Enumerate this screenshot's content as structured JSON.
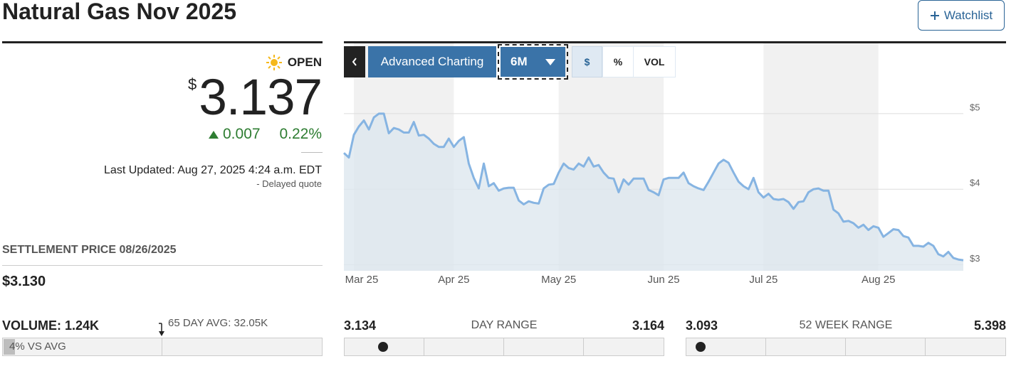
{
  "header": {
    "title": "Natural Gas Nov 2025",
    "watchlist": "Watchlist"
  },
  "quote": {
    "status": "OPEN",
    "currency": "$",
    "price": 3.137,
    "change": 0.007,
    "change_percent": "0.22%",
    "last_updated": "Last Updated: Aug 27, 2025 4:24 a.m. EDT",
    "delayed": "- Delayed quote"
  },
  "settlement": {
    "label": "SETTLEMENT PRICE 08/26/2025",
    "value": "$3.130"
  },
  "volume": {
    "label": "VOLUME: 1.24K",
    "average": "65 DAY AVG: 32.05K",
    "vs_average": "4% VS AVG"
  },
  "day_range": {
    "low": 3.134,
    "label": "DAY RANGE",
    "high": 3.164
  },
  "week52_range": {
    "low": 3.093,
    "label": "52 WEEK RANGE",
    "high": 5.398
  },
  "tabs": {
    "advanced": "Advanced Charting",
    "period": "6M",
    "dollar": "$",
    "percent": "%",
    "volume": "VOL"
  },
  "chart_data": {
    "type": "area",
    "color": "#86b4e2",
    "area_color": "#dde7ef",
    "band_color": "#f1f1f1",
    "grid": true,
    "categories": [
      null,
      null,
      "Mar 25",
      null,
      null,
      null,
      null,
      null,
      null,
      null,
      null,
      null,
      null,
      null,
      null,
      null,
      null,
      null,
      null,
      null,
      null,
      null,
      "Apr 25",
      null,
      null,
      null,
      null,
      null,
      null,
      null,
      null,
      null,
      null,
      null,
      null,
      null,
      null,
      null,
      null,
      null,
      null,
      null,
      null,
      "May 25",
      null,
      null,
      null,
      null,
      null,
      null,
      null,
      null,
      null,
      null,
      null,
      null,
      null,
      null,
      null,
      null,
      null,
      null,
      null,
      null,
      "Jun 25",
      null,
      null,
      null,
      null,
      null,
      null,
      null,
      null,
      null,
      null,
      null,
      null,
      null,
      null,
      null,
      null,
      null,
      null,
      null,
      "Jul 25",
      null,
      null,
      null,
      null,
      null,
      null,
      null,
      null,
      null,
      null,
      null,
      null,
      null,
      null,
      null,
      null,
      null,
      null,
      null,
      null,
      null,
      null,
      "Aug 25",
      null,
      null,
      null,
      null,
      null,
      null,
      null,
      null,
      null,
      null,
      null,
      null,
      null,
      null,
      null,
      null,
      null
    ],
    "values": [
      4.48,
      4.42,
      4.72,
      4.83,
      4.91,
      4.79,
      4.95,
      5.0,
      5.0,
      4.74,
      4.81,
      4.79,
      4.75,
      4.75,
      4.89,
      4.71,
      4.72,
      4.67,
      4.6,
      4.56,
      4.56,
      4.67,
      4.56,
      4.64,
      4.69,
      4.34,
      4.15,
      4.01,
      4.34,
      4.04,
      4.08,
      3.98,
      4.01,
      4.02,
      4.02,
      3.85,
      3.8,
      3.84,
      3.82,
      3.81,
      4.01,
      4.06,
      4.07,
      4.22,
      4.34,
      4.28,
      4.26,
      4.34,
      4.3,
      4.42,
      4.3,
      4.32,
      4.22,
      4.15,
      4.14,
      3.96,
      4.13,
      4.06,
      4.14,
      4.14,
      4.14,
      3.99,
      3.96,
      3.92,
      4.13,
      4.15,
      4.15,
      4.15,
      4.22,
      4.08,
      4.04,
      4.01,
      3.99,
      4.1,
      4.22,
      4.34,
      4.39,
      4.35,
      4.22,
      4.1,
      4.04,
      4.0,
      4.15,
      3.96,
      3.89,
      3.94,
      3.87,
      3.86,
      3.87,
      3.83,
      3.74,
      3.83,
      3.84,
      3.96,
      4.0,
      4.01,
      3.98,
      3.98,
      3.73,
      3.68,
      3.57,
      3.58,
      3.55,
      3.49,
      3.53,
      3.46,
      3.51,
      3.49,
      3.37,
      3.42,
      3.47,
      3.46,
      3.38,
      3.36,
      3.25,
      3.25,
      3.24,
      3.29,
      3.25,
      3.14,
      3.11,
      3.17,
      3.09,
      3.07,
      3.06
    ],
    "ylim": [
      2.92,
      5.94
    ],
    "yticks": [
      {
        "value": 5,
        "label": "$5"
      },
      {
        "value": 4,
        "label": "$4"
      },
      {
        "value": 3,
        "label": "$3"
      }
    ]
  }
}
